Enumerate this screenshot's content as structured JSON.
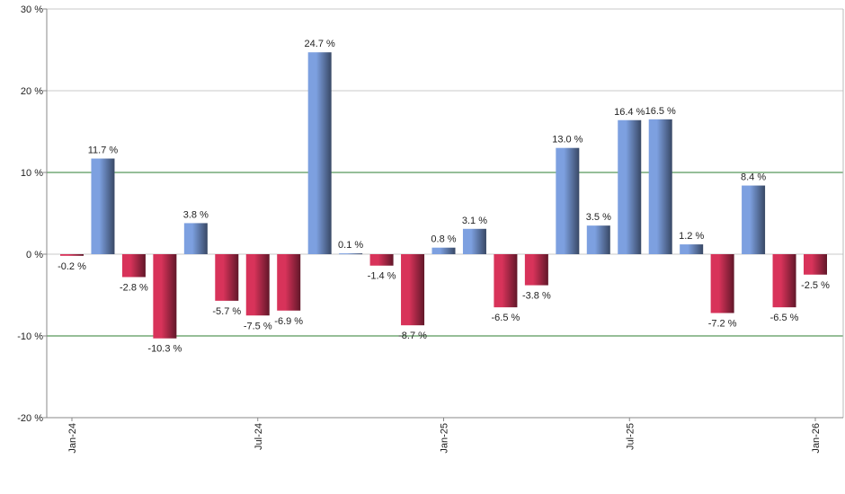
{
  "chart_data": {
    "type": "bar",
    "categories": [
      "Jan-24",
      null,
      null,
      null,
      null,
      null,
      "Jul-24",
      null,
      null,
      null,
      null,
      null,
      "Jan-25",
      null,
      null,
      null,
      null,
      null,
      "Jul-25",
      null,
      null,
      null,
      null,
      null,
      "Jan-26"
    ],
    "values": [
      -0.2,
      11.7,
      -2.8,
      -10.3,
      3.8,
      -5.7,
      -7.5,
      -6.9,
      24.7,
      0.1,
      -1.4,
      -8.7,
      0.8,
      3.1,
      -6.5,
      -3.8,
      13.0,
      3.5,
      16.4,
      16.5,
      1.2,
      -7.2,
      8.4,
      -6.5,
      -2.5
    ],
    "value_labels": [
      "-0.2 %",
      "11.7 %",
      "-2.8 %",
      "-10.3 %",
      "3.8 %",
      "-5.7 %",
      "-7.5 %",
      "-6.9 %",
      "24.7 %",
      "0.1 %",
      "-1.4 %",
      "-8.7 %",
      "0.8 %",
      "3.1 %",
      "-6.5 %",
      "-3.8 %",
      "13.0 %",
      "3.5 %",
      "16.4 %",
      "16.5 %",
      "1.2 %",
      "-7.2 %",
      "8.4 %",
      "-6.5 %",
      "-2.5 %"
    ],
    "positive_color": "#7da0e0",
    "negative_color": "#d8335a",
    "ylim": [
      -20,
      30
    ],
    "yticks": [
      {
        "value": -20,
        "label": "-20 %"
      },
      {
        "value": -10,
        "label": "-10 %"
      },
      {
        "value": 0,
        "label": "0 %"
      },
      {
        "value": 10,
        "label": "10 %"
      },
      {
        "value": 20,
        "label": "20 %"
      },
      {
        "value": 30,
        "label": "30 %"
      }
    ],
    "grid": true,
    "reference_lines": [
      10,
      -10
    ],
    "reference_color": "#2e7d32"
  }
}
